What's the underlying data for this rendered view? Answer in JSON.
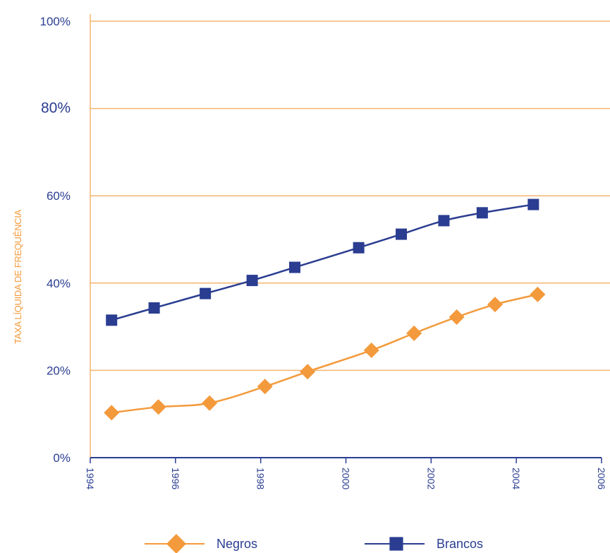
{
  "chart_data": {
    "type": "line",
    "ylabel": "TAXA LÍQUIDA DE FREQUÊNCIA",
    "xlabel": "",
    "title": "",
    "x_ticks": [
      "1994",
      "1996",
      "1998",
      "2000",
      "2002",
      "2004",
      "2006"
    ],
    "y_ticks": [
      "0%",
      "20%",
      "40%",
      "60%",
      "80%",
      "100%"
    ],
    "xlim": [
      1994,
      2006
    ],
    "ylim": [
      0,
      100
    ],
    "grid": "horizontal",
    "legend_position": "bottom",
    "series": [
      {
        "name": "Negros",
        "color": "#f39a3c",
        "marker": "diamond",
        "x": [
          1994.5,
          1995.6,
          1996.8,
          1998.1,
          1999.1,
          2000.6,
          2001.6,
          2002.6,
          2003.5,
          2004.5
        ],
        "y": [
          10.3,
          11.6,
          12.5,
          16.3,
          19.7,
          24.6,
          28.5,
          32.2,
          35.1,
          37.4
        ]
      },
      {
        "name": "Brancos",
        "color": "#2a3d91",
        "marker": "square",
        "x": [
          1994.5,
          1995.5,
          1996.7,
          1997.8,
          1998.8,
          2000.3,
          2001.3,
          2002.3,
          2003.2,
          2004.4
        ],
        "y": [
          31.5,
          34.3,
          37.6,
          40.6,
          43.6,
          48.1,
          51.2,
          54.3,
          56.1,
          58.0
        ]
      }
    ]
  }
}
